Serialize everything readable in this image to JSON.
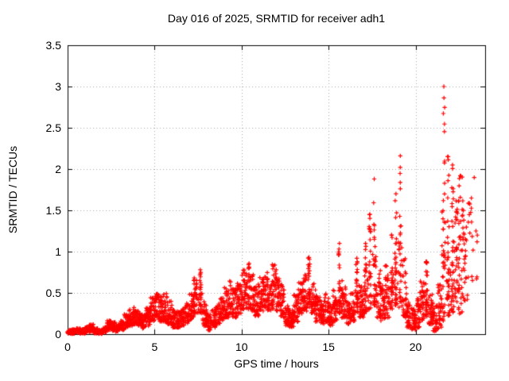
{
  "chart_data": {
    "type": "scatter",
    "title": "Day 016 of 2025, SRMTID for receiver adh1",
    "xlabel": "GPS time / hours",
    "ylabel": "SRMTID / TECUs",
    "xlim": [
      0,
      24
    ],
    "ylim": [
      0,
      3.5
    ],
    "xticks": [
      "0",
      "5",
      "10",
      "15",
      "20"
    ],
    "yticks": [
      "0",
      "0.5",
      "1",
      "1.5",
      "2",
      "2.5",
      "3",
      "3.5"
    ],
    "grid": true,
    "grid_style": "dotted",
    "grid_color": "#a8a8a8",
    "border_color": "#000000",
    "marker": "plus",
    "marker_color": "#ff0000",
    "series_name": "SRMTID",
    "y_max_point": 3.0,
    "y_max_point_time_h": 21.5,
    "data_end_time_h": 23.5,
    "bins_format": [
      "t_start_h",
      "t_end_h",
      "y_min_TECU",
      "y_max_TECU",
      "n_points",
      "density_exponent_optional",
      "column_spike_optional"
    ],
    "envelope_bins": [
      [
        0.0,
        0.25,
        0.005,
        0.05,
        32,
        1.2
      ],
      [
        0.25,
        0.5,
        0.005,
        0.06,
        32,
        1.2
      ],
      [
        0.5,
        0.75,
        0.01,
        0.07,
        32,
        1.2
      ],
      [
        0.75,
        1.0,
        0.005,
        0.06,
        32,
        1.2
      ],
      [
        1.0,
        1.25,
        0.02,
        0.09,
        32,
        1.2
      ],
      [
        1.25,
        1.5,
        0.03,
        0.12,
        32,
        1.2
      ],
      [
        1.5,
        1.75,
        0.01,
        0.07,
        32,
        1.2
      ],
      [
        1.75,
        2.0,
        0.005,
        0.05,
        32,
        1.2
      ],
      [
        2.0,
        2.25,
        0.02,
        0.09,
        32,
        1.2
      ],
      [
        2.25,
        2.5,
        0.05,
        0.17,
        32,
        1.2
      ],
      [
        2.5,
        2.75,
        0.04,
        0.15,
        32,
        1.2
      ],
      [
        2.75,
        3.0,
        0.03,
        0.12,
        32,
        1.2
      ],
      [
        3.0,
        3.25,
        0.05,
        0.16,
        32
      ],
      [
        3.25,
        3.5,
        0.08,
        0.24,
        32
      ],
      [
        3.5,
        3.75,
        0.1,
        0.3,
        32
      ],
      [
        3.75,
        4.0,
        0.12,
        0.33,
        32
      ],
      [
        4.0,
        4.25,
        0.1,
        0.3,
        32
      ],
      [
        4.25,
        4.5,
        0.07,
        0.24,
        32
      ],
      [
        4.5,
        4.75,
        0.1,
        0.32,
        32
      ],
      [
        4.75,
        5.0,
        0.15,
        0.45,
        32
      ],
      [
        5.0,
        5.25,
        0.18,
        0.52,
        32
      ],
      [
        5.25,
        5.5,
        0.15,
        0.48,
        32
      ],
      [
        5.5,
        5.75,
        0.15,
        0.5,
        32
      ],
      [
        5.75,
        6.0,
        0.12,
        0.4,
        32
      ],
      [
        6.0,
        6.25,
        0.08,
        0.3,
        32
      ],
      [
        6.25,
        6.5,
        0.08,
        0.28,
        32
      ],
      [
        6.5,
        6.75,
        0.1,
        0.32,
        32
      ],
      [
        6.75,
        7.0,
        0.12,
        0.38,
        32
      ],
      [
        7.0,
        7.25,
        0.18,
        0.5,
        32
      ],
      [
        7.25,
        7.5,
        0.25,
        0.7,
        32
      ],
      [
        7.5,
        7.75,
        0.25,
        0.78,
        32,
        1.1,
        1
      ],
      [
        7.75,
        8.0,
        0.1,
        0.4,
        32
      ],
      [
        8.0,
        8.25,
        0.05,
        0.25,
        32
      ],
      [
        8.25,
        8.5,
        0.08,
        0.3,
        32
      ],
      [
        8.5,
        8.75,
        0.12,
        0.38,
        32
      ],
      [
        8.75,
        9.0,
        0.15,
        0.45,
        32
      ],
      [
        9.0,
        9.25,
        0.2,
        0.58,
        32
      ],
      [
        9.25,
        9.5,
        0.22,
        0.65,
        32
      ],
      [
        9.5,
        9.75,
        0.2,
        0.55,
        32
      ],
      [
        9.75,
        10.0,
        0.25,
        0.62,
        32
      ],
      [
        10.0,
        10.25,
        0.3,
        0.78,
        32
      ],
      [
        10.25,
        10.5,
        0.3,
        0.88,
        32
      ],
      [
        10.5,
        10.75,
        0.28,
        0.75,
        32
      ],
      [
        10.75,
        11.0,
        0.22,
        0.62,
        32
      ],
      [
        11.0,
        11.25,
        0.28,
        0.7,
        32
      ],
      [
        11.25,
        11.5,
        0.32,
        0.76,
        32
      ],
      [
        11.5,
        11.75,
        0.28,
        0.68,
        32
      ],
      [
        11.75,
        12.0,
        0.3,
        0.88,
        32
      ],
      [
        12.0,
        12.25,
        0.28,
        0.7,
        32
      ],
      [
        12.25,
        12.5,
        0.2,
        0.6,
        32
      ],
      [
        12.5,
        12.75,
        0.1,
        0.35,
        32
      ],
      [
        12.75,
        13.0,
        0.08,
        0.3,
        32
      ],
      [
        13.0,
        13.25,
        0.15,
        0.48,
        32
      ],
      [
        13.25,
        13.5,
        0.25,
        0.65,
        32
      ],
      [
        13.5,
        13.75,
        0.28,
        0.72,
        32
      ],
      [
        13.75,
        14.0,
        0.3,
        0.93,
        32,
        1.2,
        1
      ],
      [
        14.0,
        14.25,
        0.25,
        0.62,
        32
      ],
      [
        14.25,
        14.5,
        0.15,
        0.48,
        32
      ],
      [
        14.5,
        14.75,
        0.12,
        0.42,
        32
      ],
      [
        14.75,
        15.0,
        0.15,
        0.5,
        32
      ],
      [
        15.0,
        15.25,
        0.1,
        0.4,
        32
      ],
      [
        15.25,
        15.5,
        0.15,
        0.55,
        32
      ],
      [
        15.5,
        15.75,
        0.25,
        1.1,
        32,
        1.3,
        1
      ],
      [
        15.75,
        16.0,
        0.2,
        0.65,
        32
      ],
      [
        16.0,
        16.25,
        0.12,
        0.4,
        32
      ],
      [
        16.25,
        16.5,
        0.15,
        0.5,
        32
      ],
      [
        16.5,
        16.75,
        0.25,
        0.92,
        32,
        1.4,
        1
      ],
      [
        16.75,
        17.0,
        0.2,
        0.6,
        32
      ],
      [
        17.0,
        17.25,
        0.25,
        1.1,
        32,
        1.6,
        1
      ],
      [
        17.25,
        17.5,
        0.3,
        1.45,
        32,
        1.8,
        1
      ],
      [
        17.5,
        17.75,
        0.35,
        1.88,
        34,
        2.0,
        1
      ],
      [
        17.75,
        18.0,
        0.2,
        0.8,
        32
      ],
      [
        18.0,
        18.25,
        0.15,
        0.6,
        32
      ],
      [
        18.25,
        18.5,
        0.2,
        0.85,
        32
      ],
      [
        18.5,
        18.75,
        0.3,
        1.2,
        32,
        1.6,
        1
      ],
      [
        18.75,
        19.0,
        0.35,
        1.7,
        32,
        1.9,
        1
      ],
      [
        19.0,
        19.25,
        0.3,
        2.16,
        34,
        2.1,
        1
      ],
      [
        19.25,
        19.5,
        0.2,
        0.95,
        32,
        1.6
      ],
      [
        19.5,
        19.75,
        0.08,
        0.4,
        32
      ],
      [
        19.75,
        20.0,
        0.05,
        0.32,
        32
      ],
      [
        20.0,
        20.25,
        0.08,
        0.45,
        32
      ],
      [
        20.25,
        20.5,
        0.15,
        0.65,
        32
      ],
      [
        20.5,
        20.75,
        0.2,
        0.88,
        32,
        1.3,
        1
      ],
      [
        20.75,
        21.0,
        0.12,
        0.55,
        32
      ],
      [
        21.0,
        21.25,
        0.04,
        0.35,
        32
      ],
      [
        21.25,
        21.5,
        0.06,
        0.6,
        32
      ],
      [
        21.5,
        21.75,
        0.15,
        3.0,
        42,
        2.4,
        1
      ],
      [
        21.75,
        22.0,
        0.2,
        2.15,
        40,
        2.0,
        1
      ],
      [
        22.0,
        22.25,
        0.25,
        2.05,
        40,
        1.9,
        1
      ],
      [
        22.25,
        22.5,
        0.3,
        1.7,
        38,
        1.6
      ],
      [
        22.5,
        22.75,
        0.25,
        2.0,
        34,
        1.8
      ],
      [
        22.75,
        23.0,
        0.4,
        1.4,
        22,
        1.4
      ],
      [
        23.0,
        23.25,
        0.5,
        1.65,
        12,
        1.2
      ],
      [
        23.25,
        23.55,
        0.6,
        2.05,
        9,
        1.2
      ]
    ]
  }
}
